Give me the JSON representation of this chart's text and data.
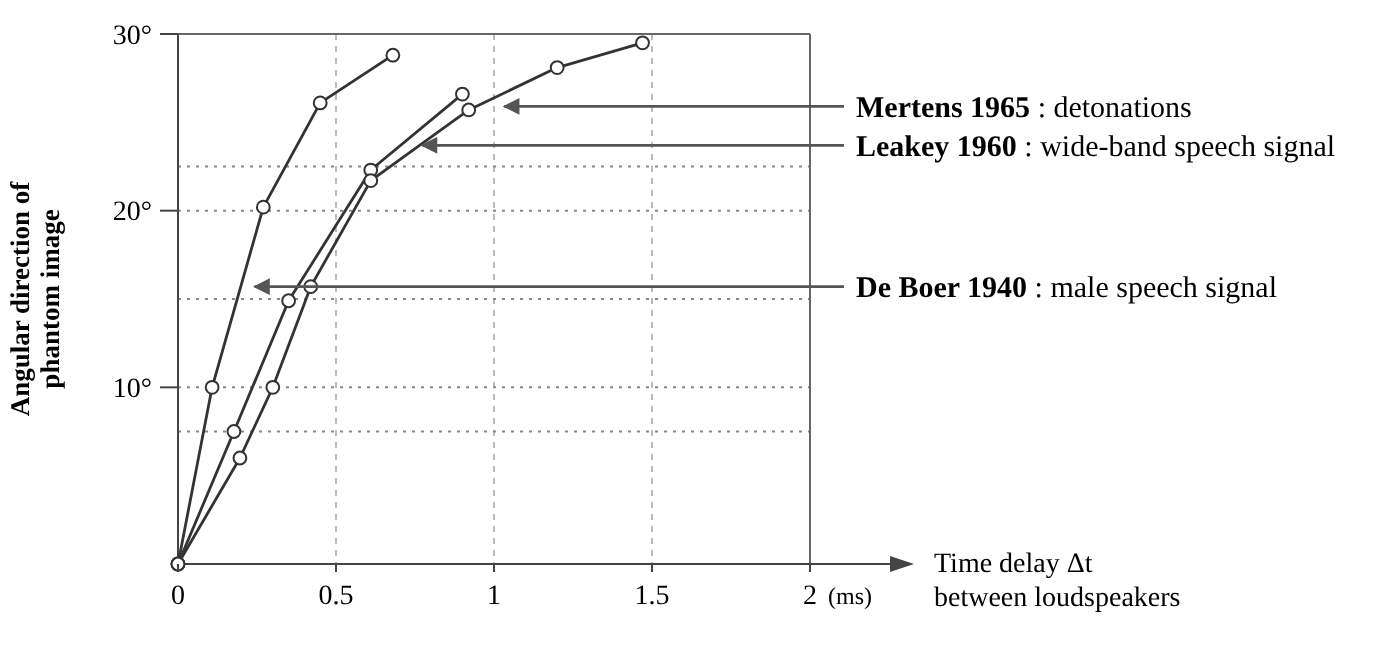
{
  "chart_data": {
    "type": "line",
    "ylabel": "Angular direction of\nphantom image",
    "xlabel": "Time delay Δt\nbetween loudspeakers",
    "xlim": [
      0,
      2
    ],
    "ylim": [
      0,
      30
    ],
    "xticks": [
      0,
      0.5,
      1,
      1.5,
      {
        "value": 2,
        "label": "2"
      }
    ],
    "yticks": [
      {
        "value": 10,
        "label": "10°"
      },
      {
        "value": 20,
        "label": "20°"
      },
      {
        "value": 30,
        "label": "30°"
      }
    ],
    "grid": "x",
    "marker": "circle",
    "line_style": "solid",
    "series": [
      {
        "color": "#333333",
        "x": [
          0,
          0.108,
          0.27,
          0.45,
          0.68
        ],
        "values": [
          0,
          10,
          20.2,
          26.1,
          28.8
        ]
      },
      {
        "color": "#333333",
        "x": [
          0,
          0.177,
          0.35,
          0.61,
          0.9
        ],
        "values": [
          0,
          7.5,
          14.9,
          22.3,
          26.6
        ]
      },
      {
        "color": "#333333",
        "x": [
          0,
          0.196,
          0.3,
          0.42,
          0.61,
          0.92,
          1.2,
          1.47
        ],
        "values": [
          0,
          6,
          10,
          15.7,
          21.7,
          25.7,
          28.1,
          29.5
        ]
      }
    ],
    "ref_lines": [
      {
        "axis": "y",
        "value": 7.5,
        "line_style": "dotted"
      },
      {
        "axis": "y",
        "value": 10,
        "line_style": "dotted"
      },
      {
        "axis": "y",
        "value": 15,
        "line_style": "dotted"
      },
      {
        "axis": "y",
        "value": 20,
        "line_style": "dotted"
      },
      {
        "axis": "y",
        "value": 22.5,
        "line_style": "dotted"
      }
    ],
    "annotations": [
      {
        "text": "**Mertens 1965** : detonations",
        "x": 1.02,
        "y": 25.9
      },
      {
        "text": "**Leakey 1960** : wide-band speech signal",
        "x": 0.76,
        "y": 23.7
      },
      {
        "text": "**De Boer 1940** : male speech signal",
        "x": 0.23,
        "y": 15.7
      },
      "(ms)"
    ]
  }
}
